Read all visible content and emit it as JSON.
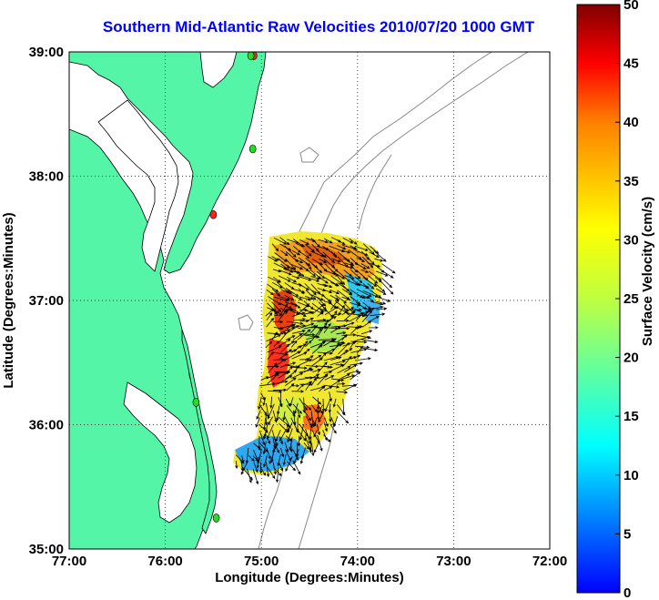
{
  "title": "Southern Mid-Atlantic Raw Velocities 2010/07/20 1000 GMT",
  "map": {
    "xlabel": "Longitude (Degrees:Minutes)",
    "ylabel": "Latitude (Degrees:Minutes)",
    "x_ticks": [
      "77:00",
      "76:00",
      "75:00",
      "74:00",
      "73:00",
      "72:00"
    ],
    "y_ticks": [
      "39:00",
      "38:00",
      "37:00",
      "36:00",
      "35:00"
    ],
    "lon_range": [
      -77,
      -72
    ],
    "lat_range": [
      35,
      39
    ],
    "land_color": "#55f5a8",
    "grid": "dotted"
  },
  "colorbar": {
    "label": "Surface Velocity (cm/s)",
    "ticks": [
      "0",
      "5",
      "10",
      "15",
      "20",
      "25",
      "30",
      "35",
      "40",
      "45",
      "50"
    ],
    "range": [
      0,
      50
    ],
    "colormap": "jet"
  },
  "stations": [
    {
      "lon": -75.08,
      "lat": 38.97,
      "color": "#ff2020"
    },
    {
      "lon": -75.11,
      "lat": 38.97,
      "color": "#22dd22"
    },
    {
      "lon": -75.09,
      "lat": 38.22,
      "color": "#22dd22"
    },
    {
      "lon": -75.5,
      "lat": 37.69,
      "color": "#ff2020"
    },
    {
      "lon": -75.68,
      "lat": 36.18,
      "color": "#22dd22"
    },
    {
      "lon": -75.47,
      "lat": 35.25,
      "color": "#22dd22"
    }
  ]
}
